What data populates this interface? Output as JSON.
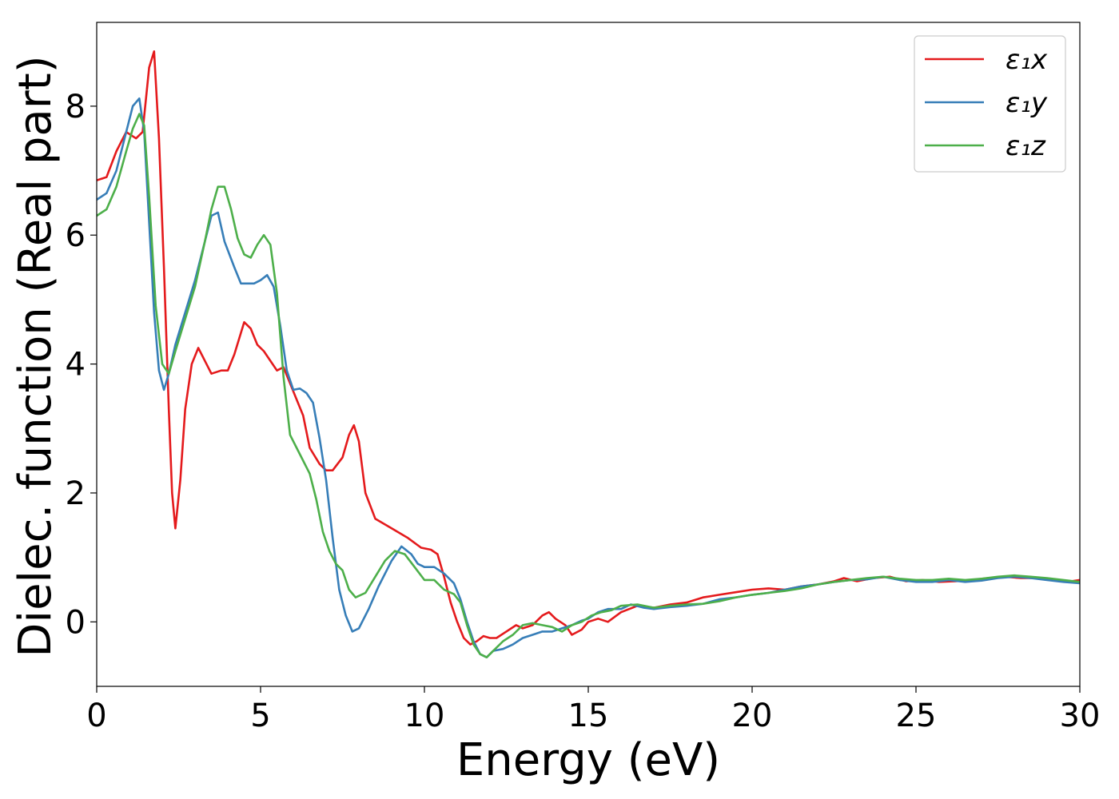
{
  "chart_data": {
    "type": "line",
    "xlabel": "Energy (eV)",
    "ylabel": "Dielec. function (Real part)",
    "xlim": [
      0,
      30
    ],
    "ylim": [
      -1,
      9.3
    ],
    "xticks": [
      0,
      5,
      10,
      15,
      20,
      25,
      30
    ],
    "yticks": [
      0,
      2,
      4,
      6,
      8
    ],
    "grid": false,
    "legend_position": "top-right",
    "series": [
      {
        "name": "ε₁x",
        "color": "#e41a1c",
        "points": [
          [
            0,
            6.85
          ],
          [
            0.3,
            6.9
          ],
          [
            0.6,
            7.3
          ],
          [
            0.9,
            7.6
          ],
          [
            1.2,
            7.5
          ],
          [
            1.4,
            7.6
          ],
          [
            1.6,
            8.6
          ],
          [
            1.75,
            8.85
          ],
          [
            1.9,
            7.5
          ],
          [
            2.05,
            5.5
          ],
          [
            2.2,
            3.3
          ],
          [
            2.3,
            2.0
          ],
          [
            2.4,
            1.45
          ],
          [
            2.55,
            2.2
          ],
          [
            2.7,
            3.3
          ],
          [
            2.9,
            4.0
          ],
          [
            3.1,
            4.25
          ],
          [
            3.3,
            4.05
          ],
          [
            3.5,
            3.85
          ],
          [
            3.8,
            3.9
          ],
          [
            4.0,
            3.9
          ],
          [
            4.2,
            4.15
          ],
          [
            4.5,
            4.65
          ],
          [
            4.7,
            4.55
          ],
          [
            4.9,
            4.3
          ],
          [
            5.1,
            4.2
          ],
          [
            5.3,
            4.05
          ],
          [
            5.5,
            3.9
          ],
          [
            5.7,
            3.95
          ],
          [
            5.9,
            3.7
          ],
          [
            6.1,
            3.45
          ],
          [
            6.3,
            3.2
          ],
          [
            6.5,
            2.7
          ],
          [
            6.8,
            2.45
          ],
          [
            7.0,
            2.35
          ],
          [
            7.2,
            2.35
          ],
          [
            7.5,
            2.55
          ],
          [
            7.7,
            2.9
          ],
          [
            7.85,
            3.05
          ],
          [
            8.0,
            2.8
          ],
          [
            8.2,
            2.0
          ],
          [
            8.5,
            1.6
          ],
          [
            9.0,
            1.45
          ],
          [
            9.5,
            1.3
          ],
          [
            9.9,
            1.15
          ],
          [
            10.2,
            1.12
          ],
          [
            10.4,
            1.05
          ],
          [
            10.6,
            0.7
          ],
          [
            10.8,
            0.3
          ],
          [
            11.0,
            0.0
          ],
          [
            11.2,
            -0.25
          ],
          [
            11.4,
            -0.35
          ],
          [
            11.6,
            -0.3
          ],
          [
            11.8,
            -0.22
          ],
          [
            12.0,
            -0.25
          ],
          [
            12.2,
            -0.25
          ],
          [
            12.5,
            -0.15
          ],
          [
            12.8,
            -0.05
          ],
          [
            13.0,
            -0.1
          ],
          [
            13.3,
            -0.05
          ],
          [
            13.6,
            0.1
          ],
          [
            13.8,
            0.15
          ],
          [
            14.0,
            0.05
          ],
          [
            14.3,
            -0.05
          ],
          [
            14.5,
            -0.2
          ],
          [
            14.8,
            -0.12
          ],
          [
            15.0,
            0.0
          ],
          [
            15.3,
            0.05
          ],
          [
            15.6,
            0.0
          ],
          [
            16.0,
            0.15
          ],
          [
            16.5,
            0.25
          ],
          [
            17.0,
            0.22
          ],
          [
            17.5,
            0.27
          ],
          [
            18.0,
            0.3
          ],
          [
            18.5,
            0.38
          ],
          [
            19.0,
            0.42
          ],
          [
            19.5,
            0.46
          ],
          [
            20.0,
            0.5
          ],
          [
            20.5,
            0.52
          ],
          [
            21.0,
            0.5
          ],
          [
            21.5,
            0.55
          ],
          [
            22.0,
            0.58
          ],
          [
            22.5,
            0.63
          ],
          [
            22.8,
            0.68
          ],
          [
            23.2,
            0.63
          ],
          [
            23.7,
            0.68
          ],
          [
            24.2,
            0.7
          ],
          [
            24.7,
            0.63
          ],
          [
            25.2,
            0.65
          ],
          [
            25.7,
            0.62
          ],
          [
            26.2,
            0.63
          ],
          [
            26.7,
            0.65
          ],
          [
            27.2,
            0.68
          ],
          [
            27.7,
            0.7
          ],
          [
            28.2,
            0.68
          ],
          [
            28.7,
            0.68
          ],
          [
            29.2,
            0.65
          ],
          [
            29.6,
            0.62
          ],
          [
            30.0,
            0.65
          ]
        ]
      },
      {
        "name": "ε₁y",
        "color": "#377eb8",
        "points": [
          [
            0,
            6.55
          ],
          [
            0.3,
            6.65
          ],
          [
            0.6,
            7.0
          ],
          [
            0.9,
            7.6
          ],
          [
            1.1,
            8.0
          ],
          [
            1.3,
            8.12
          ],
          [
            1.45,
            7.6
          ],
          [
            1.6,
            6.2
          ],
          [
            1.75,
            4.8
          ],
          [
            1.9,
            3.9
          ],
          [
            2.05,
            3.6
          ],
          [
            2.2,
            3.85
          ],
          [
            2.4,
            4.3
          ],
          [
            2.7,
            4.8
          ],
          [
            3.0,
            5.3
          ],
          [
            3.3,
            5.9
          ],
          [
            3.5,
            6.3
          ],
          [
            3.7,
            6.35
          ],
          [
            3.9,
            5.9
          ],
          [
            4.2,
            5.5
          ],
          [
            4.4,
            5.25
          ],
          [
            4.6,
            5.25
          ],
          [
            4.8,
            5.25
          ],
          [
            5.0,
            5.3
          ],
          [
            5.2,
            5.38
          ],
          [
            5.4,
            5.2
          ],
          [
            5.6,
            4.6
          ],
          [
            5.8,
            3.9
          ],
          [
            6.0,
            3.6
          ],
          [
            6.2,
            3.62
          ],
          [
            6.4,
            3.55
          ],
          [
            6.6,
            3.4
          ],
          [
            6.8,
            2.85
          ],
          [
            7.0,
            2.2
          ],
          [
            7.2,
            1.3
          ],
          [
            7.4,
            0.5
          ],
          [
            7.6,
            0.1
          ],
          [
            7.8,
            -0.15
          ],
          [
            8.0,
            -0.1
          ],
          [
            8.3,
            0.2
          ],
          [
            8.6,
            0.55
          ],
          [
            9.0,
            0.95
          ],
          [
            9.3,
            1.17
          ],
          [
            9.6,
            1.05
          ],
          [
            9.8,
            0.9
          ],
          [
            10.0,
            0.85
          ],
          [
            10.3,
            0.85
          ],
          [
            10.6,
            0.75
          ],
          [
            10.9,
            0.6
          ],
          [
            11.1,
            0.35
          ],
          [
            11.3,
            0.0
          ],
          [
            11.5,
            -0.3
          ],
          [
            11.7,
            -0.5
          ],
          [
            11.9,
            -0.55
          ],
          [
            12.1,
            -0.45
          ],
          [
            12.4,
            -0.42
          ],
          [
            12.7,
            -0.35
          ],
          [
            13.0,
            -0.25
          ],
          [
            13.3,
            -0.2
          ],
          [
            13.6,
            -0.15
          ],
          [
            13.9,
            -0.15
          ],
          [
            14.2,
            -0.1
          ],
          [
            14.5,
            -0.05
          ],
          [
            14.8,
            0.02
          ],
          [
            15.0,
            0.05
          ],
          [
            15.3,
            0.15
          ],
          [
            15.6,
            0.2
          ],
          [
            16.0,
            0.2
          ],
          [
            16.3,
            0.27
          ],
          [
            16.7,
            0.22
          ],
          [
            17.0,
            0.2
          ],
          [
            17.5,
            0.23
          ],
          [
            18.0,
            0.25
          ],
          [
            18.5,
            0.28
          ],
          [
            19.0,
            0.35
          ],
          [
            19.5,
            0.38
          ],
          [
            20.0,
            0.42
          ],
          [
            20.5,
            0.45
          ],
          [
            21.0,
            0.5
          ],
          [
            21.5,
            0.55
          ],
          [
            22.0,
            0.58
          ],
          [
            22.5,
            0.62
          ],
          [
            23.0,
            0.65
          ],
          [
            23.5,
            0.66
          ],
          [
            24.0,
            0.7
          ],
          [
            24.5,
            0.65
          ],
          [
            25.0,
            0.62
          ],
          [
            25.5,
            0.62
          ],
          [
            26.0,
            0.65
          ],
          [
            26.5,
            0.62
          ],
          [
            27.0,
            0.64
          ],
          [
            27.5,
            0.68
          ],
          [
            28.0,
            0.7
          ],
          [
            28.5,
            0.68
          ],
          [
            29.0,
            0.65
          ],
          [
            29.5,
            0.62
          ],
          [
            30.0,
            0.6
          ]
        ]
      },
      {
        "name": "ε₁z",
        "color": "#4daf4a",
        "points": [
          [
            0,
            6.3
          ],
          [
            0.3,
            6.4
          ],
          [
            0.6,
            6.75
          ],
          [
            0.9,
            7.3
          ],
          [
            1.1,
            7.65
          ],
          [
            1.3,
            7.88
          ],
          [
            1.45,
            7.7
          ],
          [
            1.6,
            6.6
          ],
          [
            1.8,
            4.9
          ],
          [
            2.0,
            4.0
          ],
          [
            2.2,
            3.85
          ],
          [
            2.4,
            4.2
          ],
          [
            2.7,
            4.7
          ],
          [
            3.0,
            5.2
          ],
          [
            3.3,
            5.9
          ],
          [
            3.5,
            6.4
          ],
          [
            3.7,
            6.75
          ],
          [
            3.9,
            6.75
          ],
          [
            4.1,
            6.4
          ],
          [
            4.3,
            5.95
          ],
          [
            4.5,
            5.7
          ],
          [
            4.7,
            5.65
          ],
          [
            4.9,
            5.85
          ],
          [
            5.1,
            6.0
          ],
          [
            5.3,
            5.85
          ],
          [
            5.5,
            5.1
          ],
          [
            5.7,
            3.8
          ],
          [
            5.9,
            2.9
          ],
          [
            6.1,
            2.7
          ],
          [
            6.3,
            2.5
          ],
          [
            6.5,
            2.3
          ],
          [
            6.7,
            1.9
          ],
          [
            6.9,
            1.4
          ],
          [
            7.1,
            1.1
          ],
          [
            7.3,
            0.9
          ],
          [
            7.5,
            0.8
          ],
          [
            7.7,
            0.5
          ],
          [
            7.9,
            0.38
          ],
          [
            8.2,
            0.45
          ],
          [
            8.5,
            0.7
          ],
          [
            8.8,
            0.95
          ],
          [
            9.1,
            1.1
          ],
          [
            9.4,
            1.05
          ],
          [
            9.7,
            0.85
          ],
          [
            10.0,
            0.65
          ],
          [
            10.3,
            0.65
          ],
          [
            10.6,
            0.5
          ],
          [
            10.9,
            0.43
          ],
          [
            11.1,
            0.3
          ],
          [
            11.3,
            -0.05
          ],
          [
            11.5,
            -0.35
          ],
          [
            11.7,
            -0.5
          ],
          [
            11.9,
            -0.55
          ],
          [
            12.1,
            -0.45
          ],
          [
            12.4,
            -0.3
          ],
          [
            12.7,
            -0.2
          ],
          [
            13.0,
            -0.05
          ],
          [
            13.3,
            -0.02
          ],
          [
            13.6,
            -0.05
          ],
          [
            13.9,
            -0.08
          ],
          [
            14.2,
            -0.15
          ],
          [
            14.5,
            -0.05
          ],
          [
            14.8,
            0.0
          ],
          [
            15.1,
            0.1
          ],
          [
            15.4,
            0.15
          ],
          [
            15.7,
            0.18
          ],
          [
            16.0,
            0.25
          ],
          [
            16.5,
            0.27
          ],
          [
            17.0,
            0.22
          ],
          [
            17.5,
            0.25
          ],
          [
            18.0,
            0.27
          ],
          [
            18.5,
            0.28
          ],
          [
            19.0,
            0.32
          ],
          [
            19.5,
            0.38
          ],
          [
            20.0,
            0.42
          ],
          [
            20.5,
            0.45
          ],
          [
            21.0,
            0.48
          ],
          [
            21.5,
            0.52
          ],
          [
            22.0,
            0.58
          ],
          [
            22.5,
            0.62
          ],
          [
            23.0,
            0.65
          ],
          [
            23.5,
            0.68
          ],
          [
            24.0,
            0.7
          ],
          [
            24.5,
            0.67
          ],
          [
            25.0,
            0.65
          ],
          [
            25.5,
            0.65
          ],
          [
            26.0,
            0.67
          ],
          [
            26.5,
            0.65
          ],
          [
            27.0,
            0.67
          ],
          [
            27.5,
            0.7
          ],
          [
            28.0,
            0.72
          ],
          [
            28.5,
            0.7
          ],
          [
            29.0,
            0.68
          ],
          [
            29.5,
            0.65
          ],
          [
            30.0,
            0.62
          ]
        ]
      }
    ]
  }
}
